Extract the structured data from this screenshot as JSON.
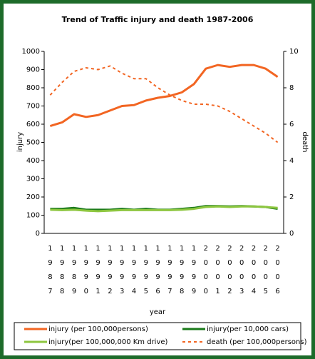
{
  "chart_data": {
    "type": "line",
    "title": "Trend of Traffic injury and death 1987-2006",
    "x_label": "year",
    "y_label": "injury",
    "y2_label": "death",
    "categories": [
      "1987",
      "1988",
      "1989",
      "1990",
      "1991",
      "1992",
      "1993",
      "1994",
      "1995",
      "1996",
      "1997",
      "1998",
      "1999",
      "2000",
      "2001",
      "2002",
      "2003",
      "2004",
      "2005",
      "2006"
    ],
    "ylim": [
      0,
      1000
    ],
    "yticks": [
      0,
      100,
      200,
      300,
      400,
      500,
      600,
      700,
      800,
      900,
      1000
    ],
    "y2lim": [
      0,
      10
    ],
    "y2ticks": [
      0,
      2,
      4,
      6,
      8,
      10
    ],
    "legend": "bottom",
    "series": [
      {
        "name": "injury (per 100,000persons)",
        "color": "#f26522",
        "dashed": false,
        "values": [
          590,
          610,
          655,
          640,
          650,
          675,
          700,
          705,
          730,
          745,
          755,
          775,
          820,
          905,
          925,
          915,
          925,
          925,
          905,
          860
        ]
      },
      {
        "name": "injury(per 10,000 cars)",
        "color": "#1a7a1a",
        "dashed": false,
        "values": [
          135,
          135,
          140,
          130,
          130,
          130,
          135,
          130,
          135,
          130,
          130,
          135,
          140,
          150,
          150,
          148,
          150,
          148,
          145,
          135
        ]
      },
      {
        "name": "injury(per 100,000,000 Km drive)",
        "color": "#8dc63f",
        "dashed": false,
        "values": [
          130,
          128,
          130,
          125,
          122,
          125,
          128,
          128,
          128,
          128,
          128,
          130,
          135,
          145,
          148,
          145,
          148,
          148,
          145,
          140
        ]
      },
      {
        "name": "death (per 100,000persons)",
        "color": "#f26522",
        "dashed": true,
        "axis": "y2",
        "values": [
          7.6,
          8.3,
          8.9,
          9.1,
          9.0,
          9.2,
          8.8,
          8.5,
          8.5,
          8.0,
          7.6,
          7.3,
          7.1,
          7.1,
          7.0,
          6.7,
          6.3,
          5.9,
          5.5,
          5.0
        ]
      }
    ]
  }
}
